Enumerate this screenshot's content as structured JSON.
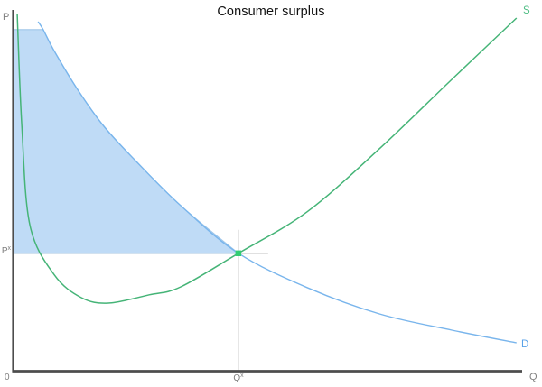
{
  "title": "Consumer surplus",
  "axis": {
    "y_label": "P",
    "x_label": "Q",
    "origin_label": "0"
  },
  "labels": {
    "price_eq": {
      "base": "P",
      "sup": "x"
    },
    "qty_eq": {
      "base": "Q",
      "sup": "x"
    },
    "supply": "S",
    "demand": "D"
  },
  "colors": {
    "supply": "#45b477",
    "demand": "#79b5ec",
    "surplus_fill": "#bfdbf6",
    "surplus_edge": "#9fc6e9",
    "marker": "#31cd72",
    "axis": "#4d4d4d",
    "guide": "#c2c2c2",
    "label_gray": "#7f7f7f",
    "title_color": "#111111",
    "s_label": "#4fbd84",
    "d_label": "#5aa2e8"
  },
  "chart_data": {
    "type": "line",
    "title": "Consumer surplus",
    "xlabel": "Q",
    "ylabel": "P",
    "xlim": [
      0,
      10.5
    ],
    "ylim": [
      0,
      10.5
    ],
    "grid": false,
    "legend_position": "none",
    "axis_ticks": "none (qualitative diagram, origin marked 0)",
    "series": [
      {
        "name": "S (supply)",
        "color": "#45b477",
        "shape": "U-shaped, steep fall near Q=0 then rising to upper right",
        "points": [
          [
            0.09,
            9.9
          ],
          [
            0.18,
            6.8
          ],
          [
            0.34,
            4.05
          ],
          [
            0.82,
            2.68
          ],
          [
            1.35,
            2.05
          ],
          [
            1.88,
            1.9
          ],
          [
            2.68,
            2.13
          ],
          [
            3.3,
            2.35
          ],
          [
            4.43,
            3.28
          ],
          [
            5.78,
            4.43
          ],
          [
            7.2,
            6.18
          ],
          [
            8.62,
            8.1
          ],
          [
            9.89,
            9.8
          ]
        ]
      },
      {
        "name": "D (demand)",
        "color": "#79b5ec",
        "shape": "convex decreasing hyperbola",
        "points": [
          [
            0.5,
            9.7
          ],
          [
            0.6,
            9.48
          ],
          [
            0.82,
            8.88
          ],
          [
            1.26,
            7.85
          ],
          [
            1.79,
            6.8
          ],
          [
            2.41,
            5.85
          ],
          [
            3.3,
            4.6
          ],
          [
            4.43,
            3.28
          ],
          [
            5.78,
            2.33
          ],
          [
            7.2,
            1.6
          ],
          [
            8.62,
            1.15
          ],
          [
            9.89,
            0.8
          ]
        ]
      }
    ],
    "equilibrium": {
      "q": 4.43,
      "p": 3.28,
      "q_label": "Qx",
      "p_label": "Px",
      "marker": "green square"
    },
    "fill_top_clip": 9.48,
    "fill_demand_index_range": [
      1,
      7
    ],
    "shaded_region": {
      "name": "Consumer surplus",
      "color": "#bfdbf6",
      "description": "area between demand curve and horizontal price line Px, from Q=0 to Qx"
    },
    "guides": [
      "vertical gray line at Qx from slightly above equilibrium down to Q-axis",
      "short horizontal gray line at Px extending right past equilibrium"
    ],
    "annotations": [
      "P",
      "Q",
      "0",
      "Px",
      "Qx",
      "S",
      "D"
    ]
  }
}
